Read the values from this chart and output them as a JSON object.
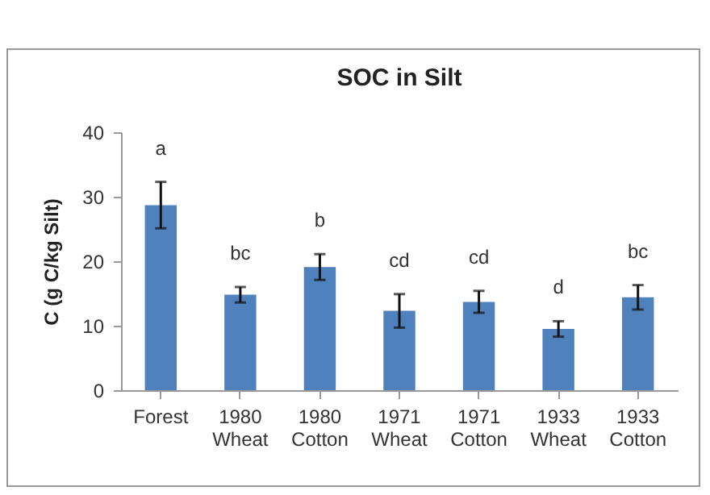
{
  "chart_data": {
    "type": "bar",
    "title": "SOC in Silt",
    "ylabel": "C (g C/kg Silt)",
    "categories": [
      "Forest",
      "1980 Wheat",
      "1980 Cotton",
      "1971 Wheat",
      "1971 Cotton",
      "1933 Wheat",
      "1933 Cotton"
    ],
    "values": [
      28.7,
      14.8,
      19.1,
      12.3,
      13.7,
      9.5,
      14.4
    ],
    "errors": [
      3.6,
      1.2,
      2,
      2.6,
      1.7,
      1.2,
      1.9
    ],
    "color": "#4f81bd",
    "ylim": [
      0,
      40
    ],
    "yticks": [
      0,
      10,
      20,
      30,
      40
    ],
    "grid": false,
    "annotations": [
      "a",
      "bc",
      "b",
      "cd",
      "cd",
      "d",
      "bc"
    ]
  }
}
